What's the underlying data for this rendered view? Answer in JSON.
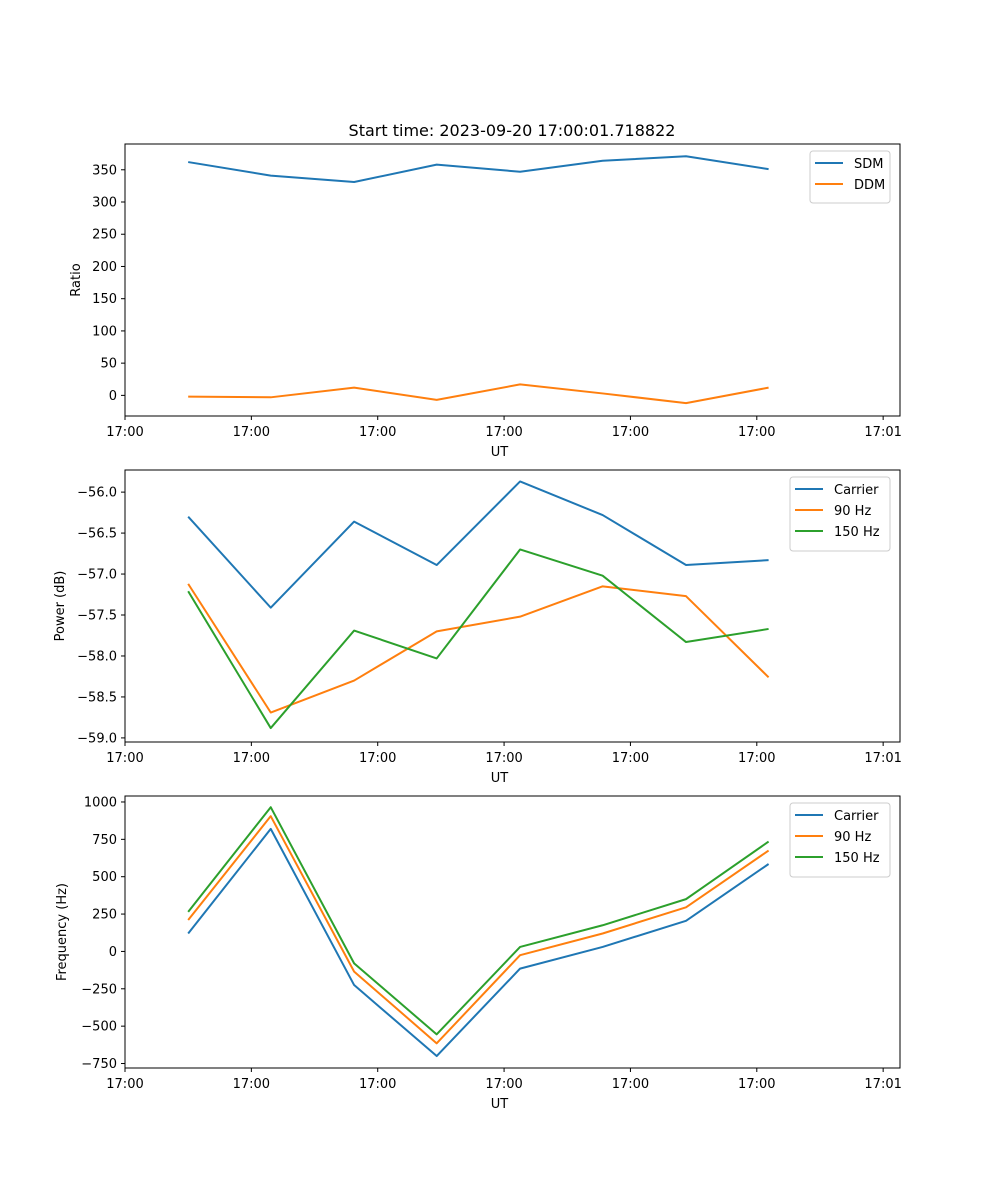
{
  "figure_title": "Start time: 2023-09-20 17:00:01.718822",
  "colors": {
    "blue": "#1f77b4",
    "orange": "#ff7f0e",
    "green": "#2ca02c"
  },
  "chart_data": [
    {
      "type": "line",
      "xlabel": "UT",
      "ylabel": "Ratio",
      "xlim": [
        0,
        9.2
      ],
      "ylim": [
        -32,
        390
      ],
      "xticks": [
        0,
        1.5,
        3,
        4.5,
        6,
        7.5,
        9
      ],
      "xticklabels": [
        "17:00",
        "17:00",
        "17:00",
        "17:00",
        "17:00",
        "17:00",
        "17:01"
      ],
      "yticks": [
        0,
        50,
        100,
        150,
        200,
        250,
        300,
        350
      ],
      "yticklabels": [
        "0",
        "50",
        "100",
        "150",
        "200",
        "250",
        "300",
        "350"
      ],
      "x": [
        0.75,
        1.73,
        2.72,
        3.7,
        4.69,
        5.67,
        6.66,
        7.64
      ],
      "series": [
        {
          "name": "SDM",
          "color": "#1f77b4",
          "values": [
            362,
            341,
            331,
            358,
            347,
            364,
            371,
            351
          ]
        },
        {
          "name": "DDM",
          "color": "#ff7f0e",
          "values": [
            -2,
            -3,
            12,
            -7,
            17,
            3,
            -12,
            12
          ]
        }
      ],
      "legend": "top-right"
    },
    {
      "type": "line",
      "xlabel": "UT",
      "ylabel": "Power (dB)",
      "xlim": [
        0,
        9.2
      ],
      "ylim": [
        -59.05,
        -55.73
      ],
      "xticks": [
        0,
        1.5,
        3,
        4.5,
        6,
        7.5,
        9
      ],
      "xticklabels": [
        "17:00",
        "17:00",
        "17:00",
        "17:00",
        "17:00",
        "17:00",
        "17:01"
      ],
      "yticks": [
        -59.0,
        -58.5,
        -58.0,
        -57.5,
        -57.0,
        -56.5,
        -56.0
      ],
      "yticklabels": [
        "−59.0",
        "−58.5",
        "−58.0",
        "−57.5",
        "−57.0",
        "−56.5",
        "−56.0"
      ],
      "x": [
        0.75,
        1.73,
        2.72,
        3.7,
        4.69,
        5.67,
        6.66,
        7.64
      ],
      "series": [
        {
          "name": "Carrier",
          "color": "#1f77b4",
          "values": [
            -56.3,
            -57.41,
            -56.36,
            -56.89,
            -55.87,
            -56.28,
            -56.89,
            -56.83
          ]
        },
        {
          "name": "90 Hz",
          "color": "#ff7f0e",
          "values": [
            -57.12,
            -58.69,
            -58.3,
            -57.7,
            -57.52,
            -57.15,
            -57.27,
            -58.26
          ]
        },
        {
          "name": "150 Hz",
          "color": "#2ca02c",
          "values": [
            -57.21,
            -58.88,
            -57.69,
            -58.03,
            -56.7,
            -57.02,
            -57.83,
            -57.67
          ]
        }
      ],
      "legend": "top-right"
    },
    {
      "type": "line",
      "xlabel": "UT",
      "ylabel": "Frequency (Hz)",
      "xlim": [
        0,
        9.2
      ],
      "ylim": [
        -780,
        1040
      ],
      "xticks": [
        0,
        1.5,
        3,
        4.5,
        6,
        7.5,
        9
      ],
      "xticklabels": [
        "17:00",
        "17:00",
        "17:00",
        "17:00",
        "17:00",
        "17:00",
        "17:01"
      ],
      "yticks": [
        -750,
        -500,
        -250,
        0,
        250,
        500,
        750,
        1000
      ],
      "yticklabels": [
        "−750",
        "−500",
        "−250",
        "0",
        "250",
        "500",
        "750",
        "1000"
      ],
      "x": [
        0.75,
        1.73,
        2.72,
        3.7,
        4.69,
        5.67,
        6.66,
        7.64
      ],
      "series": [
        {
          "name": "Carrier",
          "color": "#1f77b4",
          "values": [
            120,
            820,
            -225,
            -700,
            -115,
            30,
            205,
            585
          ]
        },
        {
          "name": "90 Hz",
          "color": "#ff7f0e",
          "values": [
            210,
            905,
            -135,
            -615,
            -25,
            120,
            295,
            675
          ]
        },
        {
          "name": "150 Hz",
          "color": "#2ca02c",
          "values": [
            265,
            965,
            -80,
            -555,
            30,
            175,
            350,
            735
          ]
        }
      ],
      "legend": "top-right"
    }
  ]
}
